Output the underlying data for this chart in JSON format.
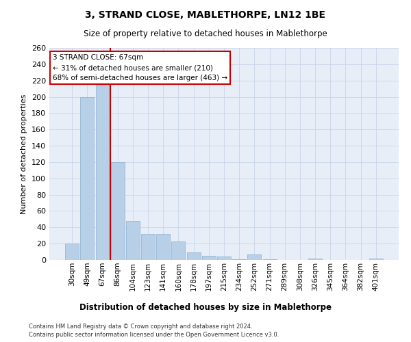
{
  "title": "3, STRAND CLOSE, MABLETHORPE, LN12 1BE",
  "subtitle": "Size of property relative to detached houses in Mablethorpe",
  "xlabel_bottom": "Distribution of detached houses by size in Mablethorpe",
  "ylabel": "Number of detached properties",
  "categories": [
    "30sqm",
    "49sqm",
    "67sqm",
    "86sqm",
    "104sqm",
    "123sqm",
    "141sqm",
    "160sqm",
    "178sqm",
    "197sqm",
    "215sqm",
    "234sqm",
    "252sqm",
    "271sqm",
    "289sqm",
    "308sqm",
    "326sqm",
    "345sqm",
    "364sqm",
    "382sqm",
    "401sqm"
  ],
  "values": [
    20,
    200,
    215,
    120,
    48,
    32,
    32,
    23,
    9,
    5,
    4,
    1,
    7,
    1,
    0,
    0,
    2,
    0,
    0,
    0,
    2
  ],
  "bar_color": "#b8cfe8",
  "bar_edgecolor": "#8ab0d0",
  "redline_x": 2.5,
  "annotation_line1": "3 STRAND CLOSE: 67sqm",
  "annotation_line2": "← 31% of detached houses are smaller (210)",
  "annotation_line3": "68% of semi-detached houses are larger (463) →",
  "annotation_box_color": "#ffffff",
  "annotation_box_edgecolor": "#cc0000",
  "redline_color": "#cc0000",
  "ylim": [
    0,
    260
  ],
  "yticks": [
    0,
    20,
    40,
    60,
    80,
    100,
    120,
    140,
    160,
    180,
    200,
    220,
    240,
    260
  ],
  "grid_color": "#c8d4e8",
  "background_color": "#e8eef8",
  "footer_line1": "Contains HM Land Registry data © Crown copyright and database right 2024.",
  "footer_line2": "Contains public sector information licensed under the Open Government Licence v3.0."
}
